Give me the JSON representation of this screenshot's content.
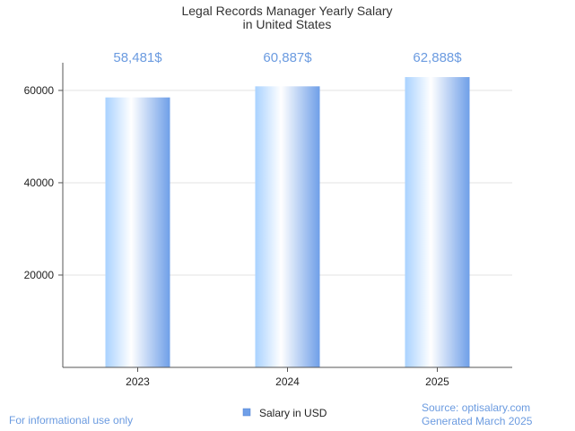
{
  "chart_data": {
    "type": "bar",
    "title": [
      "Legal Records Manager Yearly Salary",
      "in United States"
    ],
    "categories": [
      "2023",
      "2024",
      "2025"
    ],
    "series": [
      {
        "name": "Salary in USD",
        "values": [
          58481,
          60887,
          62888
        ]
      }
    ],
    "data_labels": [
      "58,481$",
      "60,887$",
      "62,888$"
    ],
    "yticks": [
      20000,
      40000,
      60000
    ],
    "ylim": [
      0,
      66000
    ],
    "grid": true,
    "legend": "bottom-center"
  },
  "footer": {
    "disclaimer": "For informational use only",
    "source": "Source: optisalary.com",
    "generated": "Generated March 2025"
  },
  "colors": {
    "bar_edge": "#6f9fe8",
    "bar_light": "#ffffff",
    "bar_mid": "#b9dcff",
    "label": "#6b9be0",
    "grid": "#e3e3e3",
    "axis": "#555555"
  }
}
